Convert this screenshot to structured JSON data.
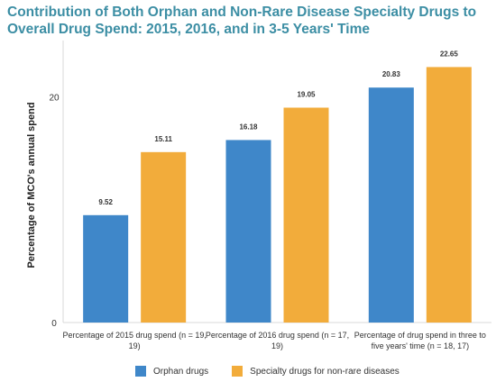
{
  "chart_data": {
    "type": "bar",
    "title": "Contribution of Both Orphan and Non-Rare Disease Specialty Drugs to Overall Drug Spend: 2015, 2016, and in 3-5 Years' Time",
    "ylabel": "Percentage of MCO's annual spend",
    "xlabel": "",
    "ylim": [
      0,
      25
    ],
    "yticks": [
      0,
      20
    ],
    "grid": false,
    "legend_position": "bottom",
    "categories": [
      [
        "Percentage of 2015 drug spend (n = 19,",
        "19)"
      ],
      [
        "Percentage of 2016 drug spend (n = 17,",
        "19)"
      ],
      [
        "Percentage of drug spend in three to",
        "five years' time (n = 18, 17)"
      ]
    ],
    "series": [
      {
        "name": "Orphan drugs",
        "color": "#3f87c9",
        "values": [
          9.52,
          16.18,
          20.83
        ],
        "labels": [
          "9.52",
          "16.18",
          "20.83"
        ]
      },
      {
        "name": "Specialty drugs for non-rare diseases",
        "color": "#f2ac3b",
        "values": [
          15.11,
          19.05,
          22.65
        ],
        "labels": [
          "15.11",
          "19.05",
          "22.65"
        ]
      }
    ]
  }
}
